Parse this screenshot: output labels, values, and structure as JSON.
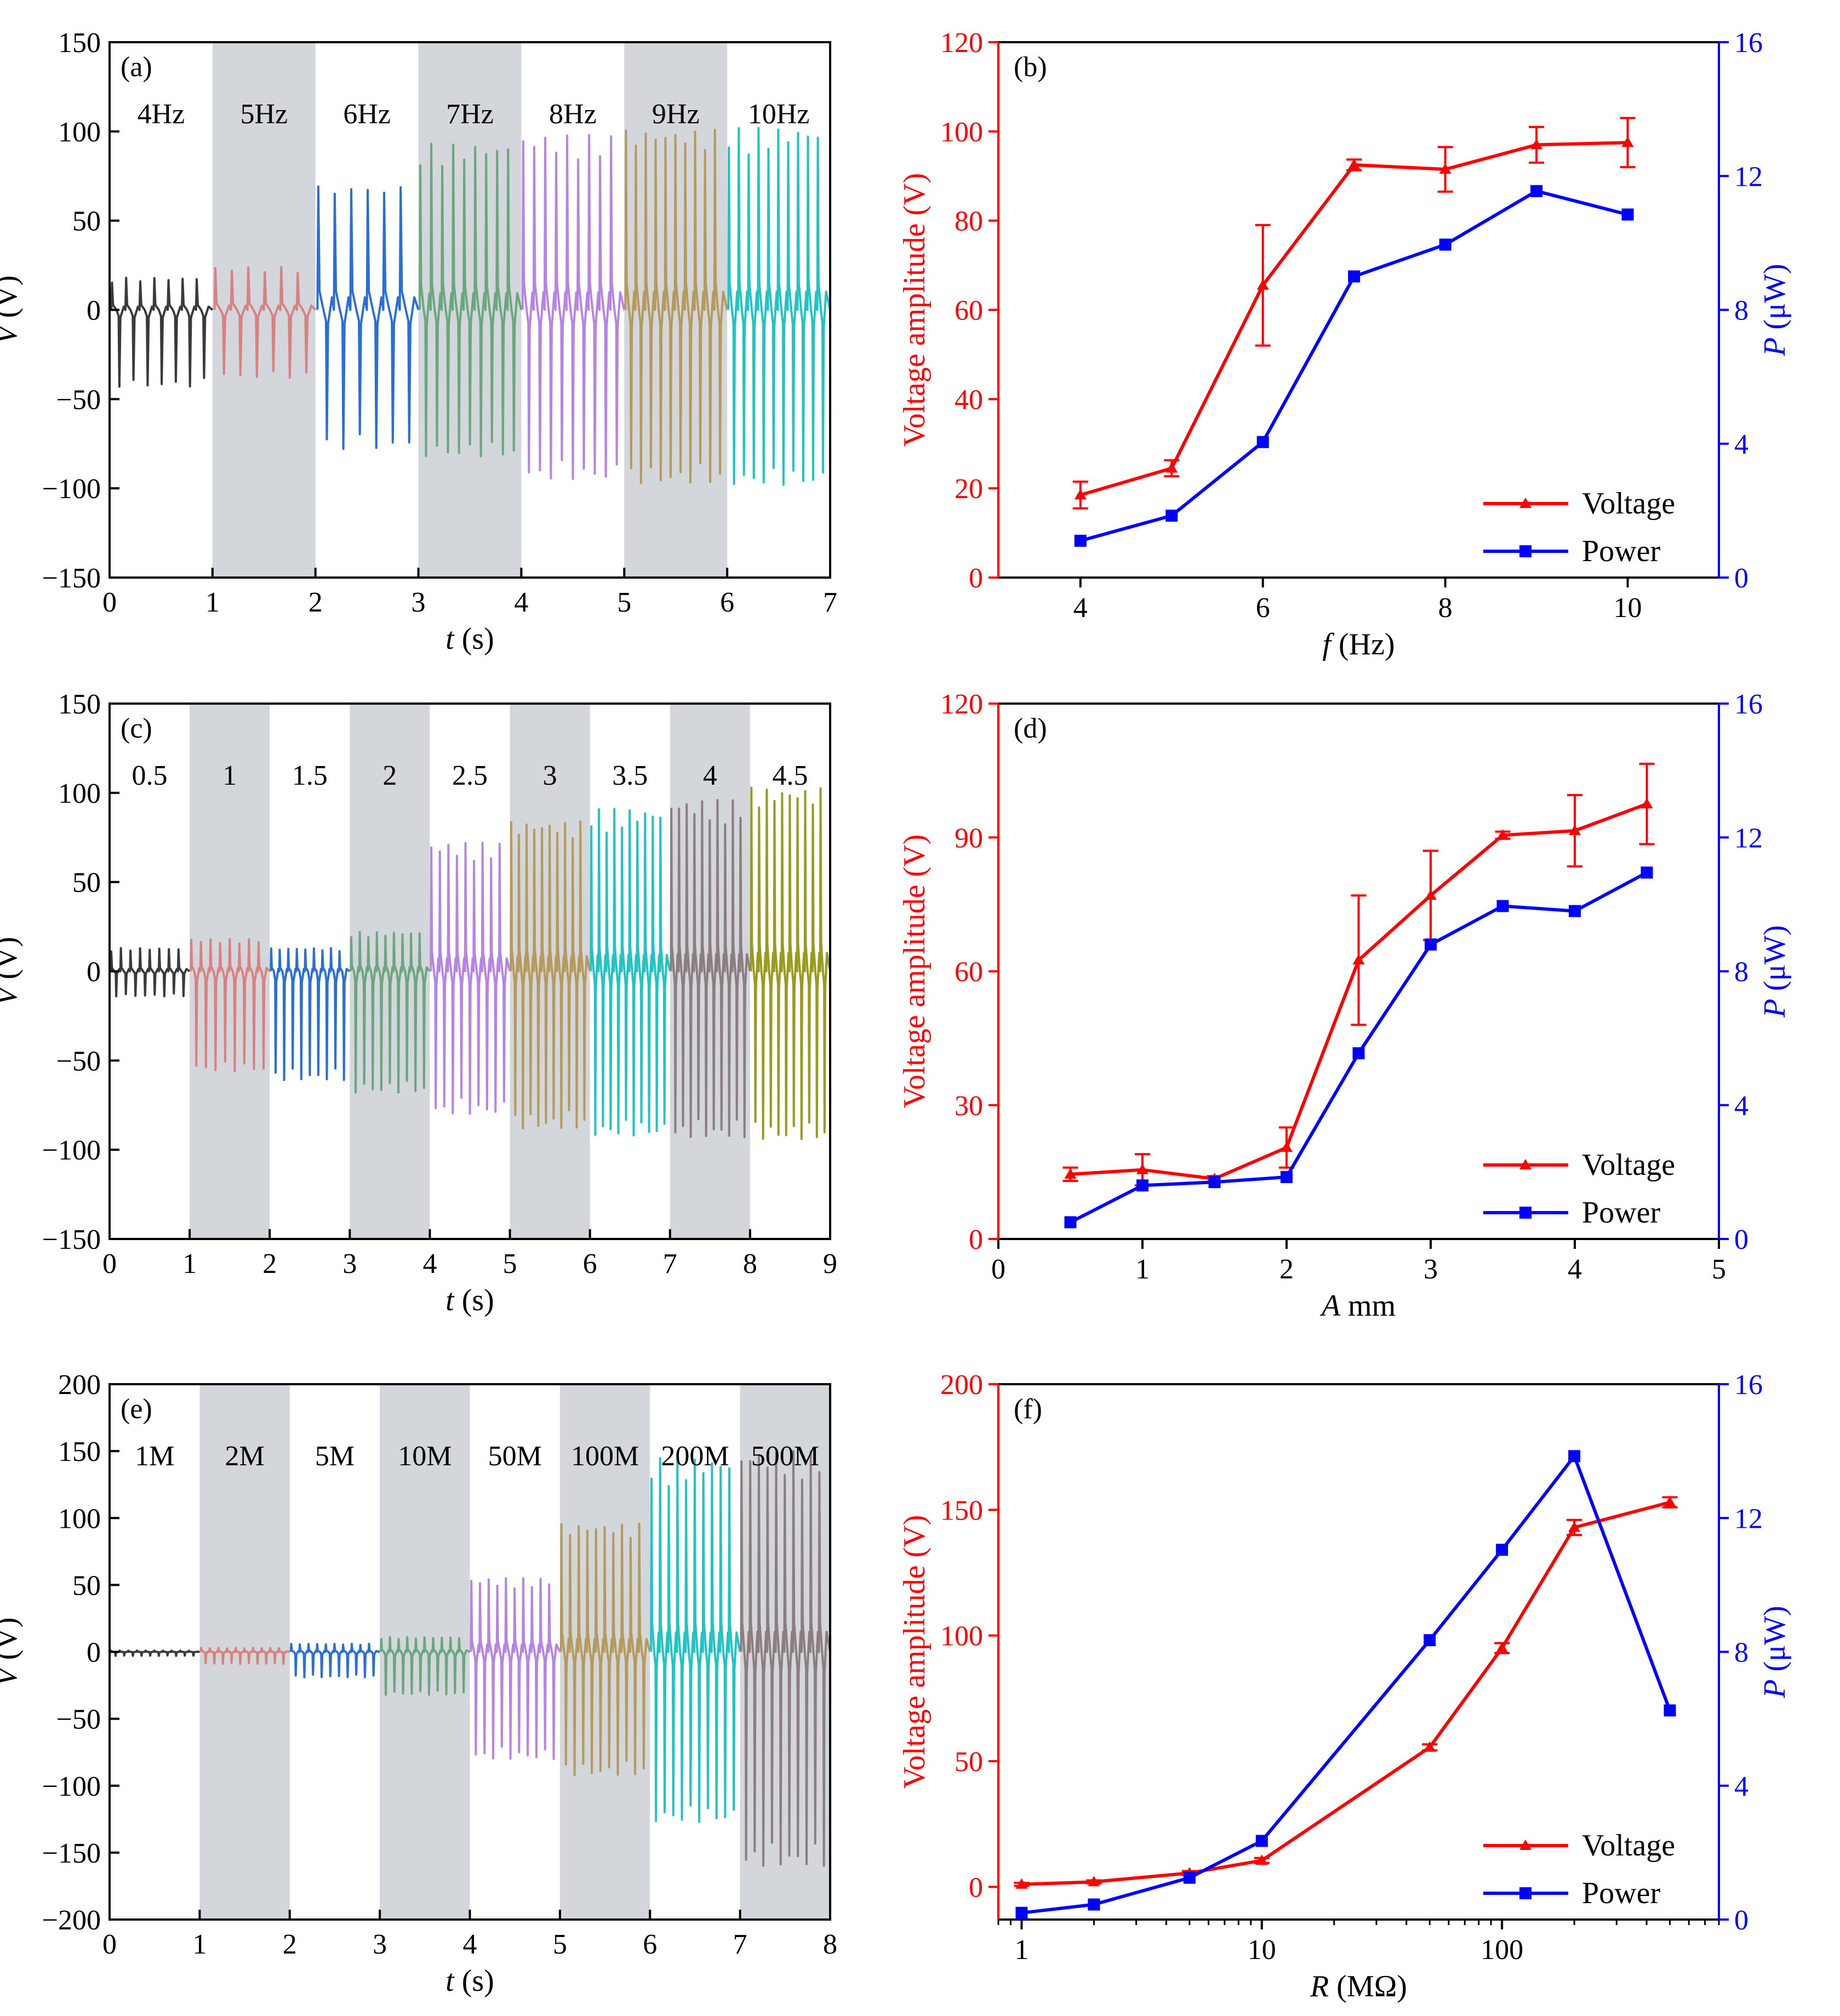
{
  "figure": {
    "colors": {
      "axis": "#000000",
      "voltage": "#ff0000",
      "power": "#0000ff",
      "shade": "#d3d6da"
    }
  },
  "chart_data": [
    {
      "id": "a",
      "type": "line",
      "panel_label": "(a)",
      "xlabel_var": "t",
      "xlabel_unit": " (s)",
      "ylabel_var": "V",
      "ylabel_unit": "  (V)",
      "xlim": [
        0,
        7
      ],
      "ylim": [
        -150,
        150
      ],
      "xticks": [
        0,
        1,
        2,
        3,
        4,
        5,
        6,
        7
      ],
      "yticks": [
        -150,
        -100,
        -50,
        0,
        50,
        100,
        150
      ],
      "yticklabels": [
        "−150",
        "−100",
        "−50",
        "0",
        "50",
        "100",
        "150"
      ],
      "shaded_segments": [
        1,
        3,
        5
      ],
      "segments": [
        {
          "label": "4Hz",
          "color": "#3a3a3a",
          "peak": 18,
          "trough": -43,
          "cycles": 7
        },
        {
          "label": "5Hz",
          "color": "#d98080",
          "peak": 24,
          "trough": -38,
          "cycles": 6
        },
        {
          "label": "6Hz",
          "color": "#2a6fd6",
          "peak": 70,
          "trough": -78,
          "cycles": 6
        },
        {
          "label": "7Hz",
          "color": "#6aa67e",
          "peak": 93,
          "trough": -82,
          "cycles": 9
        },
        {
          "label": "8Hz",
          "color": "#b784e3",
          "peak": 98,
          "trough": -95,
          "cycles": 9
        },
        {
          "label": "9Hz",
          "color": "#b59a5c",
          "peak": 101,
          "trough": -97,
          "cycles": 10
        },
        {
          "label": "10Hz",
          "color": "#22c3c3",
          "peak": 102,
          "trough": -98,
          "cycles": 10
        }
      ]
    },
    {
      "id": "b",
      "type": "line",
      "panel_label": "(b)",
      "xlabel_var": "f",
      "xlabel_unit": "  (Hz)",
      "ylabel_left": "Voltage amplitude (V)",
      "ylabel_right_var": "P",
      "ylabel_right_unit": " (μW)",
      "xscale": "linear",
      "xlim": [
        3.1,
        11
      ],
      "xticks": [
        4,
        6,
        8,
        10
      ],
      "xticklabels": [
        "4",
        "6",
        "8",
        "10"
      ],
      "ylim_left": [
        0,
        120
      ],
      "yticks_left": [
        0,
        20,
        40,
        60,
        80,
        100,
        120
      ],
      "ylim_right": [
        0,
        16
      ],
      "yticks_right": [
        0,
        4,
        8,
        12,
        16
      ],
      "x": [
        4,
        5,
        6,
        7,
        8,
        9,
        10
      ],
      "voltage": [
        18.5,
        24.5,
        65.5,
        92.5,
        91.5,
        97,
        97.5
      ],
      "voltage_err": [
        3,
        1.8,
        13.5,
        1.2,
        5,
        4,
        5.5
      ],
      "power": [
        1.1,
        1.85,
        4.05,
        9.0,
        9.95,
        11.55,
        10.85
      ],
      "legend": [
        "Voltage",
        "Power"
      ],
      "legend_position": "bottom-right"
    },
    {
      "id": "c",
      "type": "line",
      "panel_label": "(c)",
      "xlabel_var": "t",
      "xlabel_unit": " (s)",
      "ylabel_var": "V",
      "ylabel_unit": "  (V)",
      "xlim": [
        0,
        9
      ],
      "ylim": [
        -150,
        150
      ],
      "xticks": [
        0,
        1,
        2,
        3,
        4,
        5,
        6,
        7,
        8,
        9
      ],
      "yticks": [
        -150,
        -100,
        -50,
        0,
        50,
        100,
        150
      ],
      "yticklabels": [
        "−150",
        "−100",
        "−50",
        "0",
        "50",
        "100",
        "150"
      ],
      "shaded_segments": [
        1,
        3,
        5,
        7
      ],
      "segments": [
        {
          "label": "0.5",
          "color": "#3a3a3a",
          "peak": 13,
          "trough": -14,
          "cycles": 8
        },
        {
          "label": "1",
          "color": "#d98080",
          "peak": 18,
          "trough": -56,
          "cycles": 8
        },
        {
          "label": "1.5",
          "color": "#2a6fd6",
          "peak": 13,
          "trough": -61,
          "cycles": 9
        },
        {
          "label": "2",
          "color": "#6aa67e",
          "peak": 22,
          "trough": -68,
          "cycles": 9
        },
        {
          "label": "2.5",
          "color": "#b784e3",
          "peak": 72,
          "trough": -80,
          "cycles": 9
        },
        {
          "label": "3",
          "color": "#b59a5c",
          "peak": 84,
          "trough": -88,
          "cycles": 10
        },
        {
          "label": "3.5",
          "color": "#22c3c3",
          "peak": 91,
          "trough": -92,
          "cycles": 10
        },
        {
          "label": "4",
          "color": "#8c7d80",
          "peak": 96,
          "trough": -93,
          "cycles": 10
        },
        {
          "label": "4.5",
          "color": "#9a9a1e",
          "peak": 103,
          "trough": -94,
          "cycles": 10
        }
      ]
    },
    {
      "id": "d",
      "type": "line",
      "panel_label": "(d)",
      "xlabel_var": "A",
      "xlabel_unit": " mm",
      "ylabel_left": "Voltage amplitude (V)",
      "ylabel_right_var": "P",
      "ylabel_right_unit": " (μW)",
      "xscale": "linear",
      "xlim": [
        0,
        5
      ],
      "xticks": [
        0,
        1,
        2,
        3,
        4,
        5
      ],
      "xticklabels": [
        "0",
        "1",
        "2",
        "3",
        "4",
        "5"
      ],
      "ylim_left": [
        0,
        120
      ],
      "yticks_left": [
        0,
        30,
        60,
        90,
        120
      ],
      "ylim_right": [
        0,
        16
      ],
      "yticks_right": [
        0,
        4,
        8,
        12,
        16
      ],
      "x": [
        0.5,
        1,
        1.5,
        2,
        2.5,
        3,
        3.5,
        4,
        4.5
      ],
      "voltage": [
        14.5,
        15.5,
        13.5,
        20.5,
        62.5,
        77,
        90.5,
        91.5,
        97.5
      ],
      "voltage_err": [
        1.5,
        3.5,
        0.6,
        4.5,
        14.5,
        10,
        0.8,
        8,
        9
      ],
      "power": [
        0.5,
        1.6,
        1.7,
        1.85,
        5.55,
        8.8,
        9.95,
        9.8,
        10.95
      ],
      "legend": [
        "Voltage",
        "Power"
      ],
      "legend_position": "bottom-right"
    },
    {
      "id": "e",
      "type": "line",
      "panel_label": "(e)",
      "xlabel_var": "t",
      "xlabel_unit": " (s)",
      "ylabel_var": "V",
      "ylabel_unit": "  (V)",
      "xlim": [
        0,
        8
      ],
      "ylim": [
        -200,
        200
      ],
      "xticks": [
        0,
        1,
        2,
        3,
        4,
        5,
        6,
        7,
        8
      ],
      "yticks": [
        -200,
        -150,
        -100,
        -50,
        0,
        50,
        100,
        150,
        200
      ],
      "yticklabels": [
        "−200",
        "−150",
        "−100",
        "−50",
        "0",
        "50",
        "100",
        "150",
        "200"
      ],
      "shaded_segments": [
        1,
        3,
        5,
        7
      ],
      "segments": [
        {
          "label": "1M",
          "color": "#3a3a3a",
          "peak": 1,
          "trough": -3,
          "cycles": 10
        },
        {
          "label": "2M",
          "color": "#d98080",
          "peak": 3,
          "trough": -9,
          "cycles": 10
        },
        {
          "label": "5M",
          "color": "#2a6fd6",
          "peak": 6,
          "trough": -19,
          "cycles": 10
        },
        {
          "label": "10M",
          "color": "#6aa67e",
          "peak": 11,
          "trough": -32,
          "cycles": 10
        },
        {
          "label": "50M",
          "color": "#b784e3",
          "peak": 55,
          "trough": -80,
          "cycles": 10
        },
        {
          "label": "100M",
          "color": "#b59a5c",
          "peak": 96,
          "trough": -92,
          "cycles": 10
        },
        {
          "label": "200M",
          "color": "#22c3c3",
          "peak": 145,
          "trough": -127,
          "cycles": 10
        },
        {
          "label": "500M",
          "color": "#8c7d80",
          "peak": 150,
          "trough": -160,
          "cycles": 10
        }
      ]
    },
    {
      "id": "f",
      "type": "line",
      "panel_label": "(f)",
      "xlabel_var": "R",
      "xlabel_unit": " (MΩ)",
      "ylabel_left": "Voltage amplitude (V)",
      "ylabel_right_var": "P",
      "ylabel_right_unit": " (μW)",
      "xscale": "log",
      "xlim": [
        0.8,
        800
      ],
      "xticks": [
        1,
        10,
        100
      ],
      "xticklabels": [
        "1",
        "10",
        "100"
      ],
      "ylim_left": [
        -13,
        200
      ],
      "yticks_left": [
        0,
        50,
        100,
        150,
        200
      ],
      "ylim_right": [
        0,
        16
      ],
      "yticks_right": [
        0,
        4,
        8,
        12,
        16
      ],
      "x": [
        1,
        2,
        5,
        10,
        50,
        100,
        200,
        500
      ],
      "voltage": [
        1,
        2,
        5.5,
        10.5,
        55.5,
        95,
        143,
        153
      ],
      "voltage_err": [
        0.6,
        0.6,
        0.8,
        1,
        1.2,
        2,
        3,
        2
      ],
      "power": [
        0.2,
        0.45,
        1.25,
        2.35,
        8.35,
        11.05,
        13.85,
        6.25
      ],
      "legend": [
        "Voltage",
        "Power"
      ],
      "legend_position": "bottom-right"
    }
  ]
}
